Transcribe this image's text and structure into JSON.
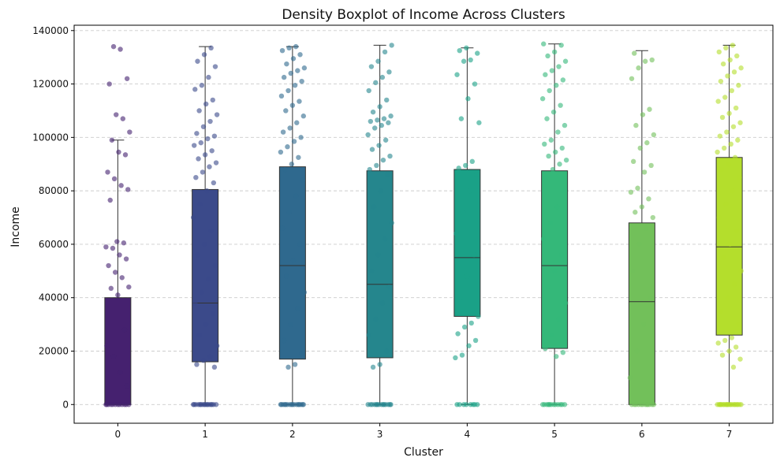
{
  "chart_data": {
    "type": "boxplot",
    "title": "Density Boxplot of Income Across Clusters",
    "xlabel": "Cluster",
    "ylabel": "Income",
    "ylim": [
      -7000,
      142000
    ],
    "yticks": [
      0,
      20000,
      40000,
      60000,
      80000,
      100000,
      120000,
      140000
    ],
    "grid": "y-dashed",
    "categories": [
      "0",
      "1",
      "2",
      "3",
      "4",
      "5",
      "6",
      "7"
    ],
    "colors": [
      "#45216f",
      "#3b4a8a",
      "#2f698e",
      "#25868d",
      "#1aa187",
      "#34b879",
      "#72c05a",
      "#b4de2c"
    ],
    "boxes": [
      {
        "whisker_low": 0,
        "q1": 0,
        "median": 0,
        "q3": 40000,
        "whisker_high": 99000
      },
      {
        "whisker_low": 0,
        "q1": 16000,
        "median": 38000,
        "q3": 80500,
        "whisker_high": 134000
      },
      {
        "whisker_low": 0,
        "q1": 17000,
        "median": 52000,
        "q3": 89000,
        "whisker_high": 134000
      },
      {
        "whisker_low": 0,
        "q1": 17500,
        "median": 45000,
        "q3": 87500,
        "whisker_high": 134500
      },
      {
        "whisker_low": 0,
        "q1": 33000,
        "median": 55000,
        "q3": 88000,
        "whisker_high": 133500
      },
      {
        "whisker_low": 0,
        "q1": 21000,
        "median": 52000,
        "q3": 87500,
        "whisker_high": 135000
      },
      {
        "whisker_low": 0,
        "q1": 0,
        "median": 38500,
        "q3": 68000,
        "whisker_high": 132500
      },
      {
        "whisker_low": 0,
        "q1": 26000,
        "median": 59000,
        "q3": 92500,
        "whisker_high": 134500
      }
    ],
    "points": [
      [
        0,
        0,
        0,
        0,
        0,
        0,
        0,
        0,
        0,
        0,
        0,
        0,
        134000,
        133000,
        122000,
        120000,
        108500,
        107000,
        102000,
        99000,
        94500,
        93500,
        87000,
        84500,
        82000,
        80500,
        76500,
        61000,
        60500,
        59000,
        58500,
        56000,
        54500,
        52000,
        49500,
        47500,
        44000,
        43500,
        41000,
        28000,
        22000,
        18000,
        12000,
        7000
      ],
      [
        0,
        0,
        0,
        0,
        0,
        0,
        0,
        0,
        0,
        0,
        0,
        0,
        0,
        0,
        0,
        0,
        14000,
        15000,
        16500,
        18000,
        22000,
        26000,
        30000,
        34000,
        38000,
        42000,
        47000,
        52000,
        56000,
        60000,
        65000,
        70000,
        75000,
        80000,
        83000,
        85000,
        87000,
        89000,
        90500,
        92000,
        93500,
        95000,
        97000,
        98000,
        99500,
        100500,
        101500,
        104000,
        106000,
        108500,
        110000,
        112500,
        114000,
        118000,
        119500,
        122500,
        126500,
        128500,
        131000,
        133500
      ],
      [
        0,
        0,
        0,
        0,
        0,
        0,
        0,
        0,
        0,
        0,
        0,
        0,
        0,
        0,
        0,
        0,
        14000,
        15000,
        19000,
        24000,
        30000,
        36000,
        42000,
        48000,
        54000,
        60000,
        66000,
        72000,
        78000,
        84000,
        88000,
        90000,
        92500,
        94500,
        96500,
        98500,
        100000,
        102000,
        103500,
        105500,
        108000,
        110000,
        112000,
        113500,
        115500,
        117500,
        119500,
        121000,
        122500,
        124000,
        125000,
        126000,
        127500,
        129500,
        131000,
        132500,
        133500,
        134000
      ],
      [
        0,
        0,
        0,
        0,
        0,
        0,
        0,
        0,
        0,
        0,
        0,
        0,
        0,
        0,
        14000,
        15000,
        20000,
        26000,
        32000,
        38000,
        44000,
        50000,
        56000,
        62000,
        68000,
        74000,
        80000,
        86000,
        88000,
        89500,
        91500,
        93000,
        95500,
        97000,
        99000,
        101000,
        103500,
        104500,
        105500,
        106000,
        106500,
        107000,
        108000,
        109500,
        111500,
        114000,
        117500,
        120500,
        122500,
        124500,
        126500,
        128500,
        132000,
        134500
      ],
      [
        0,
        0,
        0,
        0,
        0,
        0,
        0,
        0,
        17500,
        18500,
        22000,
        24000,
        26500,
        29000,
        30500,
        33000,
        40000,
        48000,
        56000,
        64000,
        72000,
        80000,
        86000,
        88500,
        89500,
        91000,
        105500,
        107000,
        114500,
        120000,
        123500,
        128500,
        129000,
        131500,
        132500,
        133500
      ],
      [
        0,
        0,
        0,
        0,
        0,
        0,
        0,
        0,
        0,
        0,
        0,
        0,
        18000,
        19500,
        21000,
        26000,
        32000,
        38000,
        44000,
        50000,
        56000,
        62000,
        68000,
        74000,
        80000,
        85000,
        88000,
        90000,
        91500,
        93000,
        94500,
        96000,
        97500,
        99000,
        102000,
        104500,
        107000,
        109500,
        112000,
        114500,
        117500,
        119500,
        121500,
        123500,
        125000,
        126500,
        128500,
        130500,
        132000,
        134500,
        135000
      ],
      [
        0,
        0,
        0,
        0,
        0,
        0,
        0,
        0,
        0,
        0,
        0,
        0,
        10000,
        20000,
        30000,
        40000,
        50000,
        60000,
        66000,
        70000,
        72000,
        74000,
        77000,
        79500,
        81000,
        87000,
        89500,
        91000,
        96000,
        98000,
        101000,
        104500,
        108500,
        110500,
        122000,
        126000,
        128500,
        129000,
        131500
      ],
      [
        0,
        0,
        0,
        0,
        0,
        0,
        0,
        0,
        0,
        0,
        0,
        0,
        0,
        0,
        0,
        0,
        0,
        0,
        0,
        0,
        14000,
        17000,
        18500,
        20000,
        21500,
        23000,
        24000,
        25000,
        30000,
        35000,
        40000,
        45000,
        50000,
        55000,
        60000,
        65000,
        70000,
        75000,
        80000,
        85000,
        88000,
        90000,
        92500,
        94500,
        96000,
        97500,
        99000,
        100500,
        102000,
        104000,
        105500,
        107500,
        109000,
        111000,
        113500,
        115000,
        117500,
        119500,
        121000,
        123000,
        124500,
        126000,
        127500,
        129000,
        130500,
        132000,
        133500,
        134500
      ]
    ]
  }
}
